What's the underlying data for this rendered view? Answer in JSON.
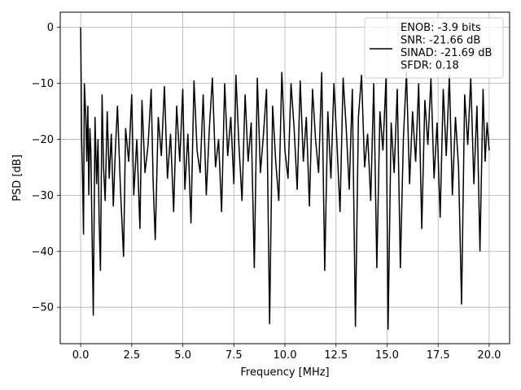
{
  "chart_data": {
    "type": "line",
    "title": "",
    "xlabel": "Frequency [MHz]",
    "ylabel": "PSD [dB]",
    "xlim": [
      -1.0,
      21.0
    ],
    "ylim": [
      -56.5,
      2.7
    ],
    "xticks": [
      0.0,
      2.5,
      5.0,
      7.5,
      10.0,
      12.5,
      15.0,
      17.5,
      20.0
    ],
    "xtick_labels": [
      "0.0",
      "2.5",
      "5.0",
      "7.5",
      "10.0",
      "12.5",
      "15.0",
      "17.5",
      "20.0"
    ],
    "yticks": [
      0,
      -10,
      -20,
      -30,
      -40,
      -50
    ],
    "ytick_labels": [
      "0",
      "−10",
      "−20",
      "−30",
      "−40",
      "−50"
    ],
    "grid": true,
    "legend_position": "top-right",
    "legend_entries": [
      "ENOB: -3.9 bits",
      "SNR: -21.66 dB",
      "SINAD: -21.69 dB",
      "SFDR: 0.18"
    ],
    "series": [
      {
        "color": "#000000",
        "points": [
          [
            0.0,
            0.0
          ],
          [
            0.05,
            -20.0
          ],
          [
            0.1,
            -28.0
          ],
          [
            0.14,
            -37.0
          ],
          [
            0.18,
            -10.0
          ],
          [
            0.25,
            -16.0
          ],
          [
            0.3,
            -24.0
          ],
          [
            0.35,
            -14.0
          ],
          [
            0.4,
            -30.0
          ],
          [
            0.45,
            -18.0
          ],
          [
            0.5,
            -22.0
          ],
          [
            0.55,
            -35.0
          ],
          [
            0.62,
            -51.5
          ],
          [
            0.7,
            -16.0
          ],
          [
            0.78,
            -28.0
          ],
          [
            0.85,
            -20.0
          ],
          [
            0.9,
            -34.0
          ],
          [
            0.97,
            -43.5
          ],
          [
            1.05,
            -12.0
          ],
          [
            1.12,
            -25.0
          ],
          [
            1.2,
            -31.0
          ],
          [
            1.3,
            -15.0
          ],
          [
            1.4,
            -27.0
          ],
          [
            1.5,
            -19.0
          ],
          [
            1.6,
            -32.0
          ],
          [
            1.7,
            -22.0
          ],
          [
            1.8,
            -14.0
          ],
          [
            1.95,
            -29.0
          ],
          [
            2.1,
            -41.0
          ],
          [
            2.2,
            -18.0
          ],
          [
            2.35,
            -24.0
          ],
          [
            2.5,
            -12.0
          ],
          [
            2.6,
            -30.0
          ],
          [
            2.75,
            -20.0
          ],
          [
            2.9,
            -36.0
          ],
          [
            3.0,
            -13.0
          ],
          [
            3.15,
            -26.0
          ],
          [
            3.3,
            -21.0
          ],
          [
            3.45,
            -11.0
          ],
          [
            3.55,
            -28.0
          ],
          [
            3.65,
            -38.0
          ],
          [
            3.8,
            -16.0
          ],
          [
            3.95,
            -23.0
          ],
          [
            4.1,
            -10.5
          ],
          [
            4.25,
            -27.0
          ],
          [
            4.4,
            -19.0
          ],
          [
            4.55,
            -33.0
          ],
          [
            4.7,
            -14.0
          ],
          [
            4.85,
            -24.0
          ],
          [
            5.0,
            -11.0
          ],
          [
            5.1,
            -29.0
          ],
          [
            5.25,
            -19.0
          ],
          [
            5.4,
            -35.0
          ],
          [
            5.55,
            -9.5
          ],
          [
            5.7,
            -22.0
          ],
          [
            5.85,
            -26.0
          ],
          [
            6.0,
            -12.0
          ],
          [
            6.15,
            -30.0
          ],
          [
            6.3,
            -18.0
          ],
          [
            6.45,
            -9.0
          ],
          [
            6.6,
            -25.0
          ],
          [
            6.75,
            -20.0
          ],
          [
            6.9,
            -33.0
          ],
          [
            7.05,
            -10.0
          ],
          [
            7.2,
            -23.0
          ],
          [
            7.35,
            -16.0
          ],
          [
            7.5,
            -28.0
          ],
          [
            7.6,
            -8.5
          ],
          [
            7.75,
            -21.0
          ],
          [
            7.9,
            -31.0
          ],
          [
            8.05,
            -12.0
          ],
          [
            8.2,
            -24.0
          ],
          [
            8.35,
            -17.0
          ],
          [
            8.5,
            -43.0
          ],
          [
            8.65,
            -9.0
          ],
          [
            8.8,
            -26.0
          ],
          [
            8.95,
            -19.0
          ],
          [
            9.1,
            -11.0
          ],
          [
            9.25,
            -53.0
          ],
          [
            9.4,
            -14.0
          ],
          [
            9.55,
            -24.0
          ],
          [
            9.7,
            -31.0
          ],
          [
            9.85,
            -8.0
          ],
          [
            10.0,
            -22.0
          ],
          [
            10.15,
            -27.0
          ],
          [
            10.3,
            -10.0
          ],
          [
            10.45,
            -18.0
          ],
          [
            10.6,
            -29.0
          ],
          [
            10.75,
            -9.5
          ],
          [
            10.9,
            -24.0
          ],
          [
            11.05,
            -16.0
          ],
          [
            11.2,
            -32.0
          ],
          [
            11.35,
            -11.0
          ],
          [
            11.5,
            -20.0
          ],
          [
            11.65,
            -26.0
          ],
          [
            11.8,
            -8.0
          ],
          [
            11.95,
            -43.5
          ],
          [
            12.1,
            -15.0
          ],
          [
            12.25,
            -27.0
          ],
          [
            12.4,
            -10.0
          ],
          [
            12.55,
            -21.0
          ],
          [
            12.7,
            -33.0
          ],
          [
            12.85,
            -9.0
          ],
          [
            13.0,
            -18.0
          ],
          [
            13.15,
            -29.0
          ],
          [
            13.3,
            -11.0
          ],
          [
            13.45,
            -53.5
          ],
          [
            13.6,
            -16.0
          ],
          [
            13.75,
            -8.5
          ],
          [
            13.9,
            -25.0
          ],
          [
            14.05,
            -19.0
          ],
          [
            14.2,
            -31.0
          ],
          [
            14.35,
            -10.0
          ],
          [
            14.5,
            -43.0
          ],
          [
            14.65,
            -15.0
          ],
          [
            14.8,
            -22.0
          ],
          [
            14.95,
            -9.0
          ],
          [
            15.05,
            -54.0
          ],
          [
            15.2,
            -17.0
          ],
          [
            15.35,
            -26.0
          ],
          [
            15.5,
            -11.0
          ],
          [
            15.65,
            -43.0
          ],
          [
            15.8,
            -20.0
          ],
          [
            15.95,
            -8.0
          ],
          [
            16.1,
            -28.0
          ],
          [
            16.25,
            -15.0
          ],
          [
            16.4,
            -24.0
          ],
          [
            16.55,
            -10.0
          ],
          [
            16.7,
            -36.0
          ],
          [
            16.85,
            -13.0
          ],
          [
            17.0,
            -21.0
          ],
          [
            17.15,
            -9.0
          ],
          [
            17.3,
            -27.0
          ],
          [
            17.45,
            -17.0
          ],
          [
            17.6,
            -34.0
          ],
          [
            17.75,
            -11.0
          ],
          [
            17.9,
            -23.0
          ],
          [
            18.05,
            -8.5
          ],
          [
            18.2,
            -30.0
          ],
          [
            18.35,
            -16.0
          ],
          [
            18.5,
            -25.0
          ],
          [
            18.65,
            -49.5
          ],
          [
            18.8,
            -12.0
          ],
          [
            18.95,
            -21.0
          ],
          [
            19.1,
            -9.0
          ],
          [
            19.25,
            -28.0
          ],
          [
            19.4,
            -14.0
          ],
          [
            19.55,
            -40.0
          ],
          [
            19.7,
            -11.0
          ],
          [
            19.8,
            -24.0
          ],
          [
            19.9,
            -17.0
          ],
          [
            20.0,
            -22.0
          ]
        ]
      }
    ]
  }
}
